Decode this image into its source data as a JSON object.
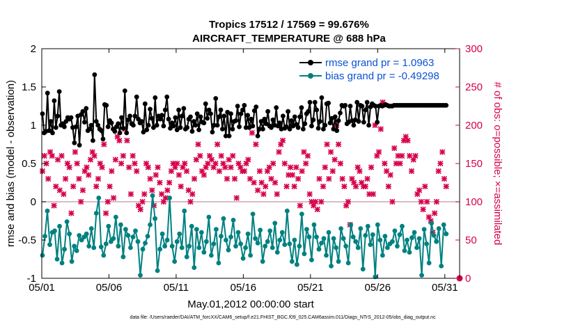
{
  "chart_data": {
    "type": "line",
    "title": "Tropics 17512 / 17569 = 99.676%",
    "subtitle": "AIRCRAFT_TEMPERATURE @ 688 hPa",
    "xlabel": "May.01,2012 00:00:00 start",
    "ylabel": "rmse and bias (model - observation)",
    "y2label": "# of obs: o=possible; ×=assimilated",
    "footnote": "data file: /Users/raeder/DAI/ATM_forcXX/CAM6_setup/f.e21.FHIST_BGC.f09_025.CAM6assim.011/Diags_NTrS_2012-05/obs_diag_output.nc",
    "xlim": [
      1,
      32.1
    ],
    "ylim": [
      -1,
      2
    ],
    "y2lim": [
      0,
      300
    ],
    "x_ticks": [
      1,
      6,
      11,
      16,
      21,
      26,
      31
    ],
    "x_tick_labels": [
      "05/01",
      "05/06",
      "05/11",
      "05/16",
      "05/21",
      "05/26",
      "05/31"
    ],
    "y_ticks": [
      -1,
      -0.5,
      0,
      0.5,
      1,
      1.5,
      2
    ],
    "y_tick_labels": [
      "-1",
      "-0.5",
      "0",
      "0.5",
      "1",
      "1.5",
      "2"
    ],
    "y2_ticks": [
      0,
      50,
      100,
      150,
      200,
      250,
      300
    ],
    "y2_tick_labels": [
      "0",
      "50",
      "100",
      "150",
      "200",
      "250",
      "300"
    ],
    "legend_location": "top-right",
    "colors": {
      "rmse": "#000000",
      "bias": "#008080",
      "obs": "#d6004b",
      "zero_line": "#c9a9b0",
      "legend_text": "#0b51d6"
    },
    "series": [
      {
        "name": "rmse grand pr = 1.0963",
        "axis": "left",
        "marker": "filled-pentagram",
        "values": [
          1.15,
          0.9,
          0.92,
          1.42,
          0.93,
          1.05,
          0.9,
          1.32,
          0.97,
          1.12,
          1.44,
          1.0,
          1.02,
          0.98,
          1.05,
          1.1,
          1.08,
          1.1,
          0.97,
          0.77,
          0.98,
          1.12,
          0.74,
          1.14,
          1.18,
          1.04,
          1.22,
          0.93,
          0.95,
          1.0,
          0.8,
          1.66,
          1.05,
          1.0,
          0.95,
          0.93,
          0.82,
          1.27,
          1.26,
          0.98,
          1.06,
          1.03,
          0.95,
          0.92,
          0.98,
          1.02,
          0.9,
          1.1,
          0.96,
          1.45,
          0.9,
          1.07,
          1.12,
          1.02,
          1.0,
          1.12,
          1.37,
          1.08,
          1.03,
          1.05,
          0.91,
          1.28,
          0.94,
          1.0,
          1.21,
          1.09,
          0.97,
          1.36,
          1.0,
          1.12,
          1.08,
          1.13,
          0.99,
          1.2,
          1.37,
          1.08,
          0.96,
          1.03,
          0.99,
          1.1,
          0.94,
          1.2,
          0.97,
          1.12,
          1.22,
          0.95,
          0.97,
          1.08,
          1.11,
          0.92,
          1.05,
          1.0,
          1.15,
          0.94,
          1.11,
          1.04,
          1.03,
          1.28,
          1.09,
          1.2,
          1.15,
          0.91,
          1.0,
          1.35,
          1.0,
          1.11,
          1.2,
          0.95,
          1.12,
          0.86,
          1.17,
          0.86,
          1.15,
          0.95,
          1.05,
          1.06,
          1.25,
          0.98,
          1.15,
          1.2,
          1.26,
          0.97,
          1.13,
          0.97,
          1.08,
          0.99,
          1.19,
          1.24,
          0.86,
          0.95,
          1.05,
          0.95,
          1.08,
          1.02,
          1.18,
          0.99,
          0.97,
          1.07,
          1.0,
          1.23,
          0.99,
          1.03,
          0.95,
          1.12,
          0.96,
          0.98,
          1.18,
          0.95,
          1.06,
          0.99,
          1.11,
          1.01,
          0.97,
          1.11,
          1.23,
          0.95,
          1.02,
          1.15,
          1.18,
          1.3,
          0.99,
          1.07,
          1.3,
          1.2,
          0.96,
          1.05,
          1.36,
          0.95,
          1.0,
          1.28,
          1.29,
          1.03,
          1.09,
          0.95,
          1.11,
          0.93,
          1.06,
          1.16,
          1.26,
          1.25,
          1.26,
          1.02,
          1.04,
          1.25,
          1.06,
          1.0,
          1.07,
          1.3,
          1.05,
          1.26,
          1.25,
          1.04,
          1.2,
          1.3,
          1.0,
          1.24,
          1.28,
          1.26,
          1.25,
          1.04,
          1.25,
          1.26,
          1.25,
          1.26,
          1.27,
          1.26,
          1.25,
          1.25,
          1.25,
          1.26,
          1.26,
          1.26,
          1.26,
          1.26,
          1.26,
          1.26,
          1.26,
          1.26,
          1.26,
          1.26,
          1.26,
          1.26,
          1.26,
          1.26,
          1.26,
          1.26,
          1.26,
          1.26,
          1.26,
          1.26,
          1.26,
          1.26,
          1.26,
          1.26,
          1.26,
          1.26,
          1.26,
          1.26,
          1.26,
          1.26,
          1.26
        ]
      },
      {
        "name": "bias grand pr = -0.49298",
        "axis": "left",
        "marker": "filled-circle",
        "values": [
          -0.7,
          -0.45,
          -0.12,
          -0.56,
          -0.4,
          -0.38,
          -0.75,
          -0.32,
          -0.8,
          -0.62,
          -0.26,
          -0.42,
          -0.78,
          -0.58,
          -0.64,
          -0.44,
          -0.5,
          -0.46,
          -0.42,
          -0.58,
          -0.35,
          -0.6,
          -0.15,
          0.05,
          -0.59,
          -0.7,
          -0.55,
          -0.32,
          -0.52,
          -0.48,
          -0.2,
          -0.58,
          -0.3,
          -0.72,
          -0.36,
          -0.44,
          -0.6,
          -0.46,
          -0.38,
          -0.52,
          -0.96,
          -0.62,
          -0.54,
          -0.45,
          -0.3,
          0.08,
          -0.22,
          -0.9,
          -0.62,
          -0.42,
          -0.58,
          -0.5,
          0.05,
          -0.58,
          -0.78,
          -0.52,
          -0.42,
          -0.6,
          -0.12,
          -0.72,
          -0.58,
          -0.32,
          -0.86,
          -0.36,
          -0.6,
          -0.4,
          -0.66,
          -0.52,
          -0.2,
          -0.7,
          -0.55,
          -0.36,
          -0.8,
          -0.45,
          -0.22,
          -0.5,
          -0.63,
          -0.46,
          -0.24,
          -0.58,
          -0.4,
          -0.55,
          -0.74,
          -0.6,
          -0.42,
          -0.7,
          -0.16,
          -0.48,
          -0.54,
          -0.37,
          -0.78,
          -0.58,
          -0.52,
          -0.38,
          -0.6,
          -0.28,
          -0.66,
          -0.5,
          -0.4,
          -0.56,
          -0.12,
          -0.55,
          -0.78,
          -0.5,
          -0.82,
          -0.58,
          -0.16,
          -0.68,
          -0.36,
          -0.46,
          -0.76,
          -0.3,
          -0.46,
          -0.62,
          -0.54,
          -0.48,
          -0.7,
          -0.4,
          -0.84,
          -0.48,
          -0.6,
          -0.78,
          -0.35,
          -0.48,
          -0.58,
          -0.8,
          -0.3,
          -0.46,
          -0.52,
          -0.6,
          -0.35,
          -0.88,
          -0.44,
          -0.32,
          -0.56,
          -0.43,
          -0.98,
          -0.3,
          -0.5,
          -0.7,
          -0.45,
          -0.6,
          -0.55,
          -0.52,
          -0.38,
          -0.58,
          -0.43,
          -0.32,
          -0.64,
          -0.5,
          -0.66,
          -0.47,
          -0.4,
          -0.6,
          -0.48,
          -0.96,
          -0.36,
          -0.55,
          -0.8,
          -0.28,
          -0.44,
          -0.52,
          -0.35,
          -0.84,
          -0.3,
          -0.42
        ]
      }
    ],
    "obs_series": {
      "name": "# of obs",
      "axis": "right",
      "marker": "asterisk",
      "values": [
        140,
        160,
        150,
        130,
        165,
        160,
        95,
        120,
        155,
        115,
        160,
        110,
        130,
        150,
        145,
        85,
        120,
        165,
        150,
        130,
        100,
        115,
        140,
        145,
        135,
        155,
        165,
        160,
        120,
        130,
        150,
        145,
        175,
        85,
        100,
        120,
        140,
        105,
        155,
        185,
        180,
        150,
        160,
        195,
        180,
        145,
        110,
        160,
        150,
        140,
        95,
        90,
        100,
        110,
        150,
        145,
        130,
        115,
        95,
        135,
        145,
        125,
        110,
        100,
        105,
        115,
        125,
        140,
        150,
        145,
        150,
        135,
        120,
        145,
        150,
        140,
        115,
        100,
        110,
        130,
        155,
        175,
        160,
        140,
        135,
        145,
        150,
        160,
        155,
        145,
        150,
        175,
        140,
        160,
        150,
        145,
        130,
        155,
        145,
        160,
        130,
        105,
        150,
        145,
        140,
        140,
        150,
        155,
        130,
        190,
        125,
        175,
        115,
        140,
        125,
        110,
        120,
        140,
        145,
        130,
        150,
        125,
        110,
        165,
        175,
        180,
        150,
        120,
        135,
        145,
        135,
        120,
        145,
        130,
        95,
        140,
        165,
        150,
        160,
        110,
        100,
        95,
        100,
        90,
        130,
        100,
        120,
        145,
        175,
        130,
        165,
        140,
        155,
        200,
        175,
        150,
        130,
        120,
        95,
        100,
        70,
        130,
        125,
        120,
        145,
        140,
        125,
        120,
        120,
        130,
        110,
        145,
        110,
        200,
        160,
        165,
        195,
        230,
        150,
        140,
        120,
        135,
        100,
        170,
        150,
        160,
        150,
        160,
        180,
        185,
        180,
        160,
        140,
        155,
        160,
        110,
        115,
        100,
        90,
        120,
        100,
        80,
        75,
        60,
        85,
        100,
        140,
        150,
        165,
        130,
        120
      ]
    }
  }
}
